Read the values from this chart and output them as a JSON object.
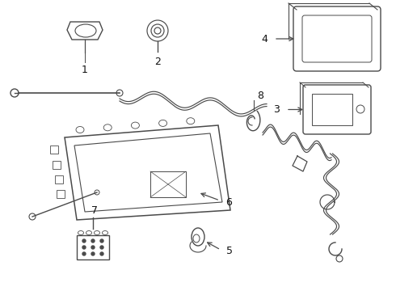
{
  "bg_color": "#ffffff",
  "line_color": "#4a4a4a",
  "label_color": "#111111",
  "figsize": [
    4.9,
    3.6
  ],
  "dpi": 100
}
